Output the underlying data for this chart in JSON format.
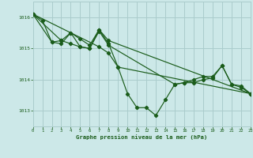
{
  "title": "Graphe pression niveau de la mer (hPa)",
  "bg_color": "#cce8e8",
  "grid_color": "#aacccc",
  "line_color": "#1a5c1a",
  "xlim": [
    0,
    23
  ],
  "ylim": [
    1012.5,
    1016.5
  ],
  "yticks": [
    1013,
    1014,
    1015,
    1016
  ],
  "xticks": [
    0,
    1,
    2,
    3,
    4,
    5,
    6,
    7,
    8,
    9,
    10,
    11,
    12,
    13,
    14,
    15,
    16,
    17,
    18,
    19,
    20,
    21,
    22,
    23
  ],
  "series1": [
    [
      0,
      1016.1
    ],
    [
      1,
      1015.9
    ],
    [
      2,
      1015.2
    ],
    [
      3,
      1015.15
    ],
    [
      4,
      1015.5
    ],
    [
      5,
      1015.05
    ],
    [
      6,
      1015.0
    ],
    [
      7,
      1015.6
    ],
    [
      8,
      1015.15
    ],
    [
      9,
      1014.4
    ],
    [
      10,
      1013.55
    ],
    [
      11,
      1013.1
    ],
    [
      12,
      1013.1
    ],
    [
      13,
      1012.85
    ],
    [
      14,
      1013.35
    ],
    [
      15,
      1013.85
    ],
    [
      16,
      1013.9
    ],
    [
      17,
      1013.9
    ],
    [
      18,
      1014.0
    ],
    [
      19,
      1014.05
    ],
    [
      20,
      1014.45
    ],
    [
      21,
      1013.85
    ],
    [
      22,
      1013.8
    ],
    [
      23,
      1013.55
    ]
  ],
  "series2": [
    [
      0,
      1016.1
    ],
    [
      2,
      1015.2
    ],
    [
      3,
      1015.25
    ],
    [
      4,
      1015.15
    ],
    [
      5,
      1015.05
    ],
    [
      6,
      1015.0
    ],
    [
      7,
      1015.55
    ],
    [
      8,
      1015.1
    ],
    [
      15,
      1013.85
    ],
    [
      16,
      1013.9
    ],
    [
      17,
      1014.0
    ],
    [
      18,
      1014.1
    ],
    [
      19,
      1014.1
    ],
    [
      20,
      1014.45
    ],
    [
      21,
      1013.85
    ],
    [
      22,
      1013.75
    ],
    [
      23,
      1013.55
    ]
  ],
  "series3": [
    [
      0,
      1016.1
    ],
    [
      3,
      1015.25
    ],
    [
      4,
      1015.5
    ],
    [
      5,
      1015.3
    ],
    [
      6,
      1015.1
    ],
    [
      7,
      1015.6
    ],
    [
      8,
      1015.25
    ],
    [
      23,
      1013.55
    ]
  ],
  "series4": [
    [
      0,
      1016.1
    ],
    [
      7,
      1015.05
    ],
    [
      8,
      1014.85
    ],
    [
      9,
      1014.4
    ],
    [
      23,
      1013.55
    ]
  ]
}
